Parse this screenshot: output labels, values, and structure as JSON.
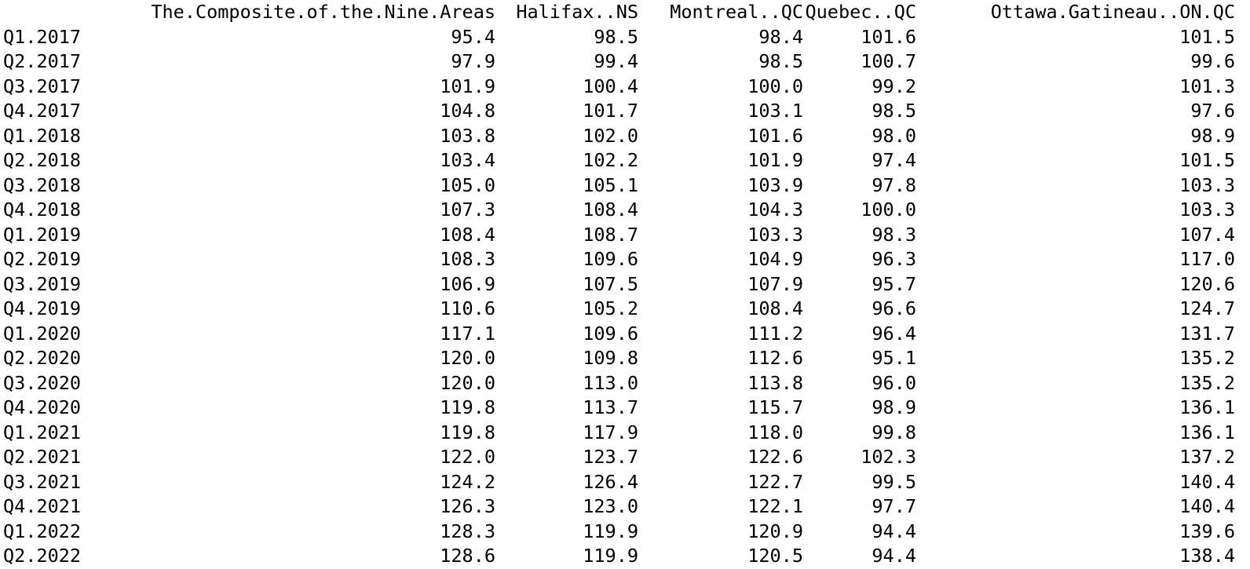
{
  "table": {
    "columns": [
      "The.Composite.of.the.Nine.Areas",
      "Halifax..NS",
      "Montreal..QC",
      "Quebec..QC",
      "Ottawa.Gatineau..ON.QC"
    ],
    "rows": [
      {
        "label": "Q1.2017",
        "values": [
          "95.4",
          "98.5",
          "98.4",
          "101.6",
          "101.5"
        ]
      },
      {
        "label": "Q2.2017",
        "values": [
          "97.9",
          "99.4",
          "98.5",
          "100.7",
          "99.6"
        ]
      },
      {
        "label": "Q3.2017",
        "values": [
          "101.9",
          "100.4",
          "100.0",
          "99.2",
          "101.3"
        ]
      },
      {
        "label": "Q4.2017",
        "values": [
          "104.8",
          "101.7",
          "103.1",
          "98.5",
          "97.6"
        ]
      },
      {
        "label": "Q1.2018",
        "values": [
          "103.8",
          "102.0",
          "101.6",
          "98.0",
          "98.9"
        ]
      },
      {
        "label": "Q2.2018",
        "values": [
          "103.4",
          "102.2",
          "101.9",
          "97.4",
          "101.5"
        ]
      },
      {
        "label": "Q3.2018",
        "values": [
          "105.0",
          "105.1",
          "103.9",
          "97.8",
          "103.3"
        ]
      },
      {
        "label": "Q4.2018",
        "values": [
          "107.3",
          "108.4",
          "104.3",
          "100.0",
          "103.3"
        ]
      },
      {
        "label": "Q1.2019",
        "values": [
          "108.4",
          "108.7",
          "103.3",
          "98.3",
          "107.4"
        ]
      },
      {
        "label": "Q2.2019",
        "values": [
          "108.3",
          "109.6",
          "104.9",
          "96.3",
          "117.0"
        ]
      },
      {
        "label": "Q3.2019",
        "values": [
          "106.9",
          "107.5",
          "107.9",
          "95.7",
          "120.6"
        ]
      },
      {
        "label": "Q4.2019",
        "values": [
          "110.6",
          "105.2",
          "108.4",
          "96.6",
          "124.7"
        ]
      },
      {
        "label": "Q1.2020",
        "values": [
          "117.1",
          "109.6",
          "111.2",
          "96.4",
          "131.7"
        ]
      },
      {
        "label": "Q2.2020",
        "values": [
          "120.0",
          "109.8",
          "112.6",
          "95.1",
          "135.2"
        ]
      },
      {
        "label": "Q3.2020",
        "values": [
          "120.0",
          "113.0",
          "113.8",
          "96.0",
          "135.2"
        ]
      },
      {
        "label": "Q4.2020",
        "values": [
          "119.8",
          "113.7",
          "115.7",
          "98.9",
          "136.1"
        ]
      },
      {
        "label": "Q1.2021",
        "values": [
          "119.8",
          "117.9",
          "118.0",
          "99.8",
          "136.1"
        ]
      },
      {
        "label": "Q2.2021",
        "values": [
          "122.0",
          "123.7",
          "122.6",
          "102.3",
          "137.2"
        ]
      },
      {
        "label": "Q3.2021",
        "values": [
          "124.2",
          "126.4",
          "122.7",
          "99.5",
          "140.4"
        ]
      },
      {
        "label": "Q4.2021",
        "values": [
          "126.3",
          "123.0",
          "122.1",
          "97.7",
          "140.4"
        ]
      },
      {
        "label": "Q1.2022",
        "values": [
          "128.3",
          "119.9",
          "120.9",
          "94.4",
          "139.6"
        ]
      },
      {
        "label": "Q2.2022",
        "values": [
          "128.6",
          "119.9",
          "120.5",
          "94.4",
          "138.4"
        ]
      }
    ]
  }
}
